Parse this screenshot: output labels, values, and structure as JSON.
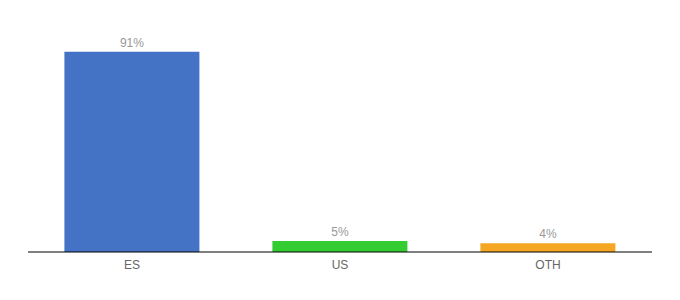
{
  "chart_data": {
    "type": "bar",
    "categories": [
      "ES",
      "US",
      "OTH"
    ],
    "values": [
      91,
      5,
      4
    ],
    "value_labels": [
      "91%",
      "5%",
      "4%"
    ],
    "colors": [
      "#4472c4",
      "#33cc33",
      "#f5a623"
    ],
    "ylim": [
      0,
      100
    ],
    "grid": false,
    "data_labels": true,
    "tick_labels": "x"
  }
}
